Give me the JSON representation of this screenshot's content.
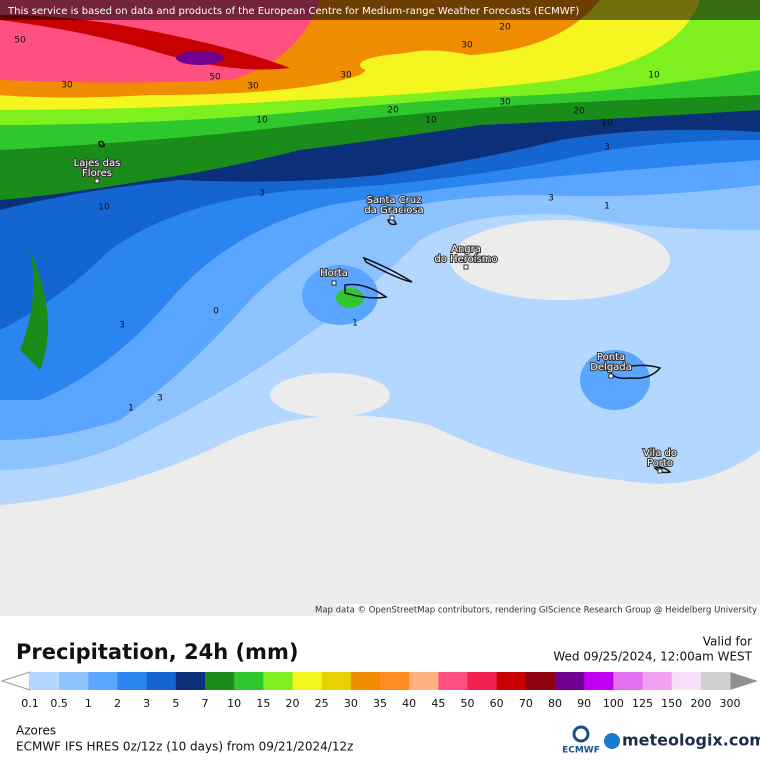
{
  "banner": "This service is based on data and products of the European Centre for Medium-range Weather Forecasts (ECMWF)",
  "map": {
    "cities": [
      {
        "lines": [
          "Lajes das",
          "Flores"
        ]
      },
      {
        "lines": [
          "Santa Cruz",
          "da Graciosa"
        ]
      },
      {
        "lines": [
          "Horta"
        ]
      },
      {
        "lines": [
          "Angra",
          "do Heroísmo"
        ]
      },
      {
        "lines": [
          "Ponta",
          "Delgada"
        ]
      },
      {
        "lines": [
          "Vila do",
          "Porto"
        ]
      }
    ],
    "contour_labels": [
      50,
      30,
      50,
      30,
      30,
      30,
      20,
      10,
      30,
      20,
      10,
      20,
      10,
      10,
      3,
      10,
      3,
      3,
      1,
      0,
      1,
      3,
      3,
      1
    ],
    "attribution": "Map data © OpenStreetMap contributors, rendering GIScience Research Group @ Heidelberg University"
  },
  "legend": {
    "title": "Precipitation, 24h (mm)",
    "valid_label": "Valid for",
    "valid_time": "Wed 09/25/2024, 12:00am WEST",
    "scale": {
      "labels": [
        0.1,
        0.5,
        1,
        2,
        3,
        5,
        7,
        10,
        15,
        20,
        25,
        30,
        35,
        40,
        45,
        50,
        60,
        70,
        80,
        90,
        100,
        125,
        150,
        200,
        300
      ],
      "colors": [
        "#b4d7ff",
        "#8cc3ff",
        "#5aa5ff",
        "#2a85f0",
        "#1565d0",
        "#0c2f7a",
        "#1a8c1a",
        "#2ec82e",
        "#7ef020",
        "#f5f520",
        "#e6d200",
        "#f08c00",
        "#ff8c20",
        "#ffb080",
        "#ff5080",
        "#f02050",
        "#c80000",
        "#900010",
        "#700090",
        "#c000f0",
        "#e070f0",
        "#f0a0f0",
        "#f8e0f8",
        "#d0d0d0"
      ]
    }
  },
  "footer": {
    "region": "Azores",
    "model": "ECMWF IFS HRES 0z/12z (10 days) from 09/21/2024/12z",
    "logo_ecmwf": "ECMWF",
    "logo_site": "meteologix.com"
  }
}
